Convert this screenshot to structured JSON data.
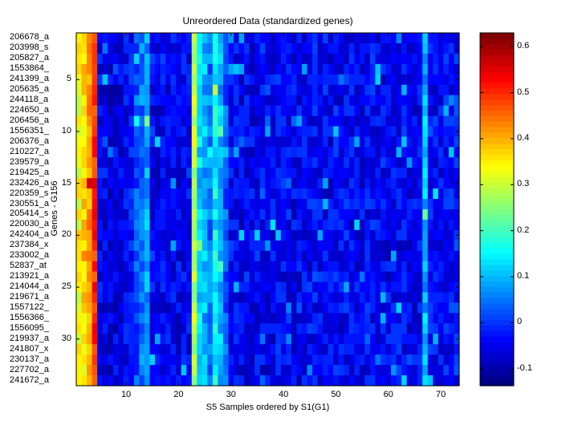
{
  "chart_data": {
    "type": "heatmap",
    "title": "Unreordered Data (standardized genes)",
    "xlabel": "S5 Samples ordered by S1(G1)",
    "ylabel": "Genes - G156",
    "n_columns": 73,
    "row_labels": [
      "206678_a",
      "203998_s",
      "205827_a",
      "1553864_",
      "241399_a",
      "205635_a",
      "244118_a",
      "224650_a",
      "206456_a",
      "1556351_",
      "206376_a",
      "210227_a",
      "239579_a",
      "219425_a",
      "232426_a",
      "220359_s",
      "230551_a",
      "205414_s",
      "220030_a",
      "242404_a",
      "237384_x",
      "233002_a",
      "52837_at",
      "213921_a",
      "214044_a",
      "219671_a",
      "1557122_",
      "1556366_",
      "1556095_",
      "219937_a",
      "241807_x",
      "230137_a",
      "227702_a",
      "241672_a"
    ],
    "x_ticks": [
      10,
      20,
      30,
      40,
      50,
      60,
      70
    ],
    "y_ticks": [
      5,
      10,
      15,
      20,
      25,
      30
    ],
    "colorbar": {
      "colormap": "jet",
      "range": [
        -0.137,
        0.63
      ],
      "ticks": [
        -0.1,
        0,
        0.1,
        0.2,
        0.3,
        0.4,
        0.5,
        0.6
      ],
      "tick_labels": [
        "-0.1",
        "0",
        "0.1",
        "0.2",
        "0.3",
        "0.4",
        "0.5",
        "0.6"
      ]
    },
    "column_means": [
      0.33,
      0.36,
      0.42,
      0.5,
      -0.05,
      -0.05,
      -0.06,
      -0.06,
      -0.05,
      -0.04,
      -0.03,
      0.02,
      0.05,
      0.08,
      -0.04,
      -0.05,
      -0.04,
      -0.05,
      -0.05,
      -0.05,
      -0.04,
      -0.04,
      0.3,
      0.12,
      0.1,
      0.05,
      0.15,
      0.1,
      0.03,
      -0.04,
      -0.04,
      -0.05,
      -0.04,
      -0.05,
      -0.04,
      -0.04,
      -0.05,
      -0.04,
      -0.03,
      -0.04,
      -0.04,
      -0.05,
      -0.05,
      -0.04,
      -0.04,
      -0.03,
      -0.04,
      -0.04,
      -0.05,
      -0.03,
      -0.04,
      -0.04,
      -0.04,
      -0.05,
      -0.05,
      -0.04,
      -0.03,
      -0.04,
      -0.04,
      -0.05,
      -0.04,
      -0.04,
      -0.04,
      -0.05,
      -0.05,
      -0.04,
      0.1,
      -0.03,
      -0.04,
      -0.04,
      -0.03,
      -0.03,
      -0.02
    ],
    "cell_variation": 0.05
  }
}
